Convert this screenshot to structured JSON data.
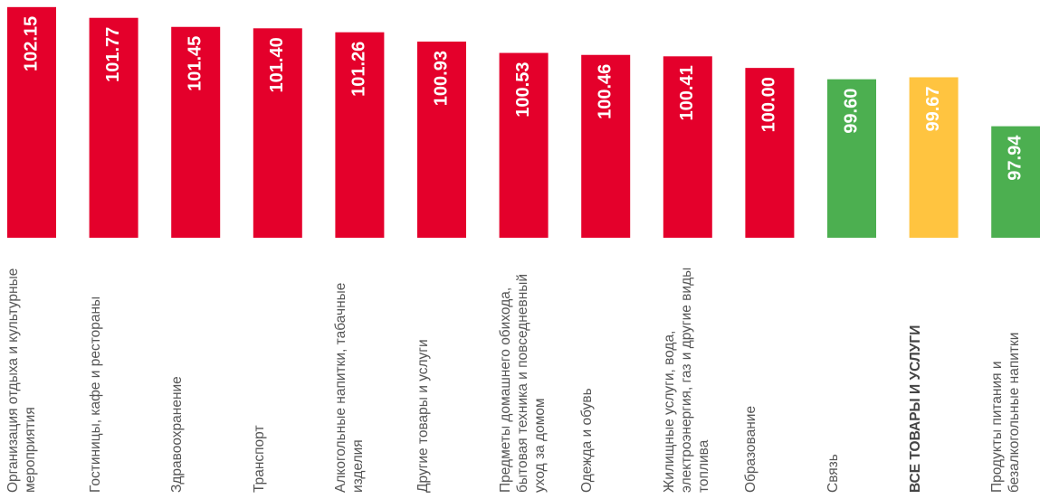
{
  "chart_data": {
    "type": "bar",
    "categories": [
      "Организация отдыха и культурные мероприятия",
      "Гостиницы, кафе и рестораны",
      "Здравоохранение",
      "Транспорт",
      "Алкогольные напитки, табачные изделия",
      "Другие товары и услуги",
      "Предметы домашнего обихода, бытовая техника и повседневный уход за домом",
      "Одежда и обувь",
      "Жилищные услуги, вода, электроэнергия, газ и другие виды топлива",
      "Образование",
      "Связь",
      "ВСЕ ТОВАРЫ И УСЛУГИ",
      "Продукты питания и безалкогольные напитки"
    ],
    "values": [
      102.15,
      101.77,
      101.45,
      101.4,
      101.26,
      100.93,
      100.53,
      100.46,
      100.41,
      100.0,
      99.6,
      99.67,
      97.94
    ],
    "value_labels": [
      "102.15",
      "101.77",
      "101.45",
      "101.40",
      "101.26",
      "100.93",
      "100.53",
      "100.46",
      "100.41",
      "100.00",
      "99.60",
      "99.67",
      "97.94"
    ],
    "colors": [
      "#e4002b",
      "#e4002b",
      "#e4002b",
      "#e4002b",
      "#e4002b",
      "#e4002b",
      "#e4002b",
      "#e4002b",
      "#e4002b",
      "#e4002b",
      "#4caf50",
      "#ffc440",
      "#4caf50"
    ],
    "bold_category": 11,
    "ylim": [
      94,
      102.4
    ]
  }
}
